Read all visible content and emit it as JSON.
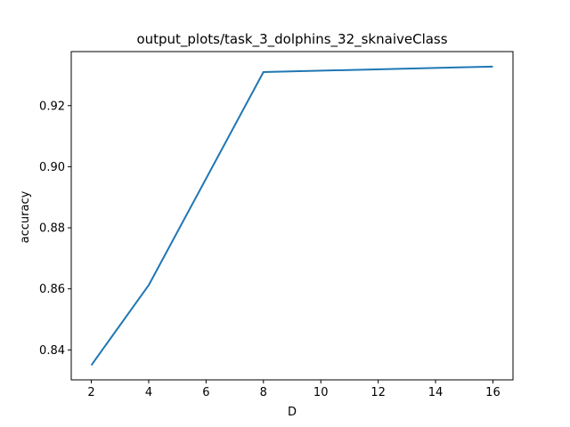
{
  "chart_data": {
    "type": "line",
    "title": "output_plots/task_3_dolphins_32_sknaiveClass",
    "xlabel": "D",
    "ylabel": "accuracy",
    "xlim": [
      1.3,
      16.7
    ],
    "ylim": [
      0.8302,
      0.9377
    ],
    "xticks": [
      2,
      4,
      6,
      8,
      10,
      12,
      14,
      16
    ],
    "xtick_labels": [
      "2",
      "4",
      "6",
      "8",
      "10",
      "12",
      "14",
      "16"
    ],
    "yticks": [
      0.84,
      0.86,
      0.88,
      0.9,
      0.92
    ],
    "ytick_labels": [
      "0.84",
      "0.86",
      "0.88",
      "0.90",
      "0.92"
    ],
    "grid": false,
    "series": [
      {
        "color": "#1f77b4",
        "x": [
          2,
          4,
          8,
          16
        ],
        "y": [
          0.835,
          0.8612,
          0.931,
          0.9328
        ]
      }
    ]
  }
}
